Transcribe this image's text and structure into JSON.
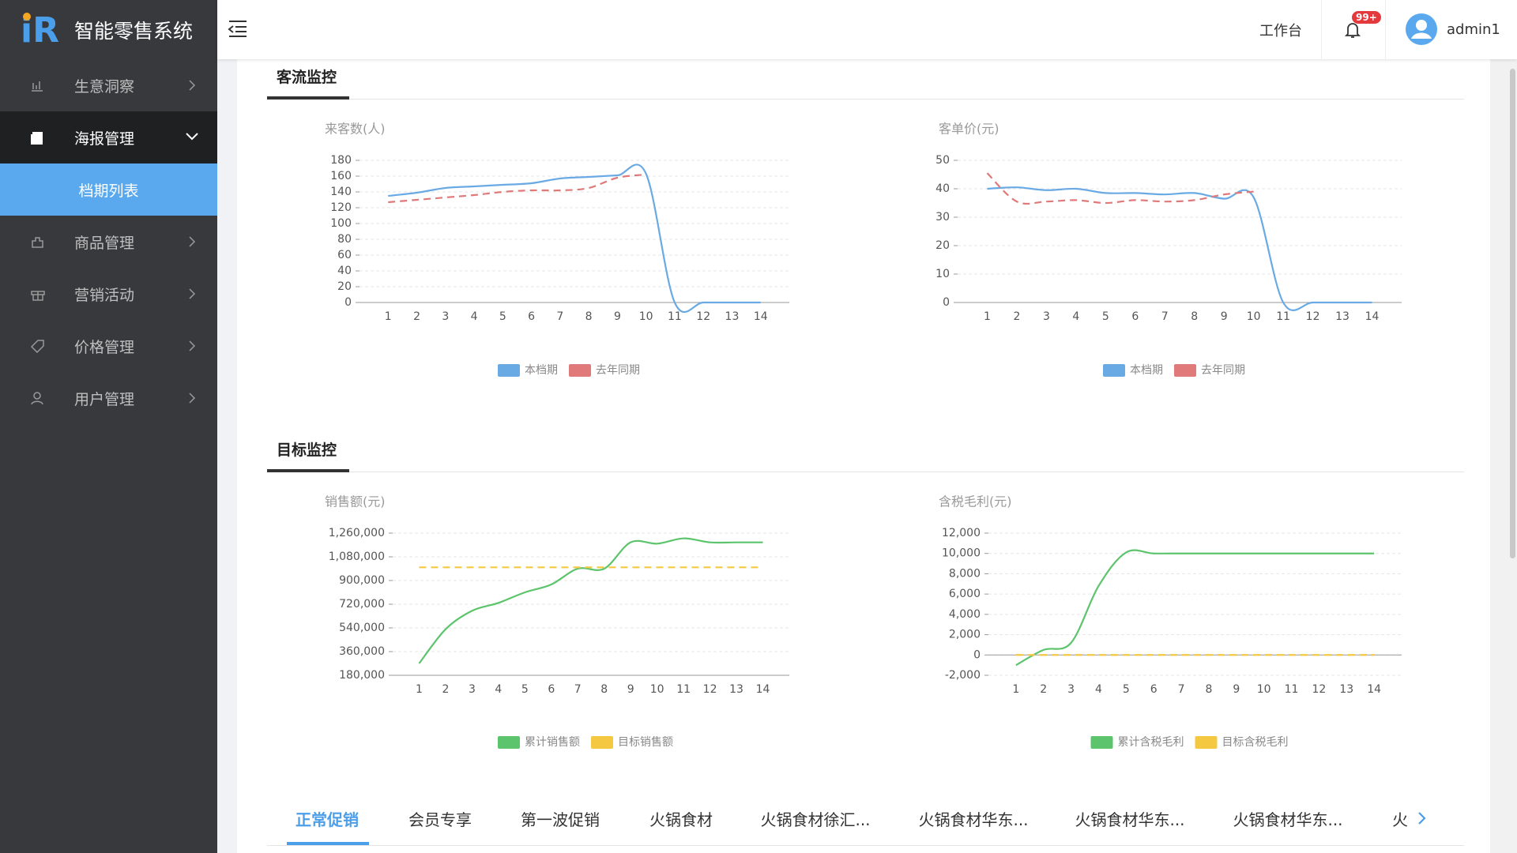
{
  "logo": "iR",
  "sidebar": {
    "brand": "智能零售系统",
    "menu": [
      {
        "label": "生意洞察"
      },
      {
        "label": "海报管理",
        "children": [
          "档期列表"
        ]
      },
      {
        "label": "商品管理"
      },
      {
        "label": "营销活动"
      },
      {
        "label": "价格管理"
      },
      {
        "label": "用户管理"
      }
    ]
  },
  "header": {
    "workbench": "工作台",
    "badge": "99+",
    "user": "admin1"
  },
  "sections": [
    "客流监控",
    "目标监控"
  ],
  "tabs": [
    "正常促销",
    "会员专享",
    "第一波促销",
    "火锅食材",
    "火锅食材徐汇...",
    "火锅食材华东...",
    "火锅食材华东...",
    "火锅食材华东...",
    "火"
  ],
  "chart_data": [
    {
      "type": "line",
      "ylabel": "来客数(人)",
      "categories": [
        "1",
        "2",
        "3",
        "4",
        "5",
        "6",
        "7",
        "8",
        "9",
        "10",
        "11",
        "12",
        "13",
        "14"
      ],
      "ylim": [
        0,
        180
      ],
      "yticks": [
        0,
        20,
        40,
        60,
        80,
        100,
        120,
        140,
        160,
        180
      ],
      "grid": true,
      "legend": "bottom",
      "series": [
        {
          "name": "本档期",
          "color": "#6aaae4",
          "line_style": "solid",
          "values": [
            135,
            139,
            145,
            147,
            149,
            151,
            157,
            159,
            161,
            163,
            0,
            0,
            0,
            0
          ]
        },
        {
          "name": "去年同期",
          "color": "#e07a7a",
          "line_style": "dashed",
          "values": [
            127,
            130,
            133,
            136,
            140,
            142,
            142,
            145,
            158,
            162,
            null,
            null,
            null,
            null
          ]
        }
      ]
    },
    {
      "type": "line",
      "ylabel": "客单价(元)",
      "categories": [
        "1",
        "2",
        "3",
        "4",
        "5",
        "6",
        "7",
        "8",
        "9",
        "10",
        "11",
        "12",
        "13",
        "14"
      ],
      "ylim": [
        0,
        50
      ],
      "yticks": [
        0,
        10,
        20,
        30,
        40,
        50
      ],
      "grid": true,
      "legend": "bottom",
      "series": [
        {
          "name": "本档期",
          "color": "#6aaae4",
          "line_style": "solid",
          "values": [
            40,
            40.5,
            39.5,
            40,
            38.5,
            38.5,
            38,
            38.5,
            36.5,
            37,
            0,
            0,
            0,
            0
          ]
        },
        {
          "name": "去年同期",
          "color": "#e07a7a",
          "line_style": "dashed",
          "values": [
            45.5,
            35.5,
            35.5,
            36,
            35,
            36,
            35.5,
            36,
            38,
            39,
            null,
            null,
            null,
            null
          ]
        }
      ]
    },
    {
      "type": "line",
      "ylabel": "销售额(元)",
      "categories": [
        "1",
        "2",
        "3",
        "4",
        "5",
        "6",
        "7",
        "8",
        "9",
        "10",
        "11",
        "12",
        "13",
        "14"
      ],
      "ylim": [
        180000,
        1260000
      ],
      "yticks": [
        {
          "value": 180000,
          "label": "180,000"
        },
        {
          "value": 360000,
          "label": "360,000"
        },
        {
          "value": 540000,
          "label": "540,000"
        },
        {
          "value": 720000,
          "label": "720,000"
        },
        {
          "value": 900000,
          "label": "900,000"
        },
        {
          "value": 1080000,
          "label": "1,080,000"
        },
        {
          "value": 1260000,
          "label": "1,260,000"
        }
      ],
      "grid": true,
      "legend": "bottom",
      "series": [
        {
          "name": "累计销售额",
          "color": "#5cc46c",
          "line_style": "solid",
          "values": [
            270000,
            530000,
            670000,
            730000,
            810000,
            870000,
            990000,
            990000,
            1190000,
            1180000,
            1220000,
            1190000,
            1190000,
            1190000
          ]
        },
        {
          "name": "目标销售额",
          "color": "#f5c842",
          "line_style": "dashed",
          "values": [
            1000000,
            1000000,
            1000000,
            1000000,
            1000000,
            1000000,
            1000000,
            1000000,
            1000000,
            1000000,
            1000000,
            1000000,
            1000000,
            1000000
          ]
        }
      ]
    },
    {
      "type": "line",
      "ylabel": "含税毛利(元)",
      "categories": [
        "1",
        "2",
        "3",
        "4",
        "5",
        "6",
        "7",
        "8",
        "9",
        "10",
        "11",
        "12",
        "13",
        "14"
      ],
      "ylim": [
        -2000,
        12000
      ],
      "yticks": [
        {
          "value": -2000,
          "label": "-2,000"
        },
        0,
        {
          "value": 2000,
          "label": "2,000"
        },
        {
          "value": 4000,
          "label": "4,000"
        },
        {
          "value": 6000,
          "label": "6,000"
        },
        {
          "value": 8000,
          "label": "8,000"
        },
        {
          "value": 10000,
          "label": "10,000"
        },
        {
          "value": 12000,
          "label": "12,000"
        }
      ],
      "grid": true,
      "legend": "bottom",
      "series": [
        {
          "name": "累计含税毛利",
          "color": "#5cc46c",
          "line_style": "solid",
          "values": [
            -1000,
            500,
            1200,
            6800,
            10100,
            10000,
            10000,
            10000,
            10000,
            10000,
            10000,
            10000,
            10000,
            10000
          ]
        },
        {
          "name": "目标含税毛利",
          "color": "#f5c842",
          "line_style": "dashed",
          "values": [
            0,
            0,
            0,
            0,
            0,
            0,
            0,
            0,
            0,
            0,
            0,
            0,
            0,
            0
          ]
        }
      ]
    }
  ]
}
